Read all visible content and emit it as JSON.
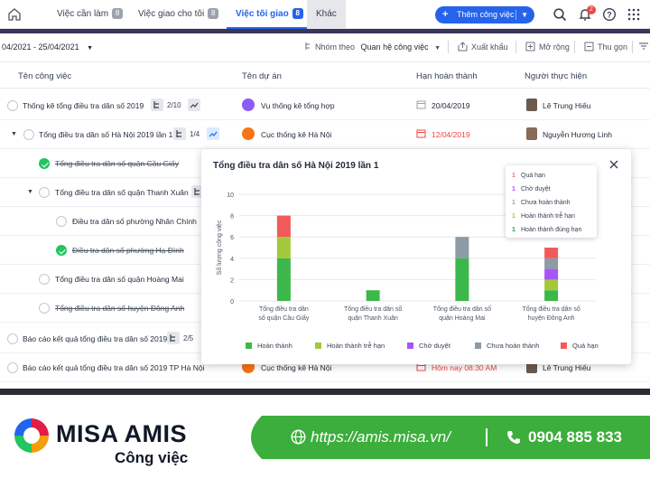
{
  "nav": {
    "tabs": [
      {
        "label": "Việc cần làm",
        "count": "8"
      },
      {
        "label": "Việc giao cho tôi",
        "count": "8"
      },
      {
        "label": "Việc tôi giao",
        "count": "8"
      }
    ],
    "more": "Khác",
    "add_button": "Thêm công việc",
    "notif_count": "2"
  },
  "toolbar": {
    "daterange": "04/2021 - 25/04/2021",
    "group_label": "Nhóm theo",
    "group_value": "Quan hệ công việc",
    "export": "Xuất khẩu",
    "expand": "Mở rộng",
    "collapse": "Thu gọn"
  },
  "table": {
    "headers": [
      "Tên công việc",
      "Tên dự án",
      "Hạn hoàn thành",
      "Người thực hiện"
    ],
    "rows": [
      {
        "name": "Thống kê tổng điều tra dân số 2019",
        "sub": "2/10",
        "project": "Vụ thống kê tổng hợp",
        "due": "20/04/2019",
        "owner": "Lê Trung Hiếu"
      },
      {
        "name": "Tổng điều tra dân số Hà Nội 2019 lần 1",
        "sub": "1/4",
        "project": "Cục thống kê Hà Nội",
        "due": "12/04/2019",
        "owner": "Nguyễn Hương Linh"
      },
      {
        "name": "Tổng điều tra dân số quận Cầu Giấy"
      },
      {
        "name": "Tổng điều tra dân số quận Thanh Xuân"
      },
      {
        "name": "Điều tra dân số phường Nhân Chính"
      },
      {
        "name": "Điều tra dân số phường Hạ Đình"
      },
      {
        "name": "Tổng điều tra dân số quận Hoàng Mai"
      },
      {
        "name": "Tổng điều tra dân số huyện Đông Anh"
      },
      {
        "name": "Báo cáo kết quả tổng điều tra dân số 2019",
        "sub": "2/5"
      },
      {
        "name": "Báo cáo kết quả tổng điều tra dân số 2019 TP Hà Nội",
        "project": "Cục thống kê Hà Nội",
        "due": "Hôm nay 08:30 AM",
        "owner": "Lê Trung Hiếu"
      }
    ]
  },
  "popup": {
    "title": "Tổng điều tra dân số Hà Nội 2019 lần 1",
    "tooltip": [
      {
        "num": "1",
        "label": "Quá hạn",
        "color": "#f87171"
      },
      {
        "num": "1",
        "label": "Chờ duyệt",
        "color": "#a855f7"
      },
      {
        "num": "1",
        "label": "Chưa hoàn thành",
        "color": "#9ca3af"
      },
      {
        "num": "1",
        "label": "Hoàn thành trễ hạn",
        "color": "#a3c93a"
      },
      {
        "num": "1",
        "label": "Hoàn thành đúng hạn",
        "color": "#22a447"
      }
    ]
  },
  "chart_data": {
    "type": "bar",
    "stacked": true,
    "title": "Tổng điều tra dân số Hà Nội 2019 lần 1",
    "ylabel": "Số lượng công việc",
    "ylim": [
      0,
      10
    ],
    "yticks": [
      0,
      2,
      4,
      6,
      8,
      10
    ],
    "grid": true,
    "legend_position": "bottom",
    "categories": [
      [
        "Tổng điều tra dân",
        "số quận Cầu Giấy"
      ],
      [
        "Tổng điều tra dân số",
        "quận Thanh Xuân"
      ],
      [
        "Tổng điều tra dân số",
        "quận Hoàng Mai"
      ],
      [
        "Tổng điều tra dân số",
        "huyện Đông Anh"
      ]
    ],
    "series": [
      {
        "name": "Hoàn thành",
        "color": "#3cb84a",
        "values": [
          4,
          1,
          4,
          1
        ]
      },
      {
        "name": "Hoàn thành trễ hạn",
        "color": "#a3c93a",
        "values": [
          2,
          0,
          0,
          1
        ]
      },
      {
        "name": "Chờ duyệt",
        "color": "#a855f7",
        "values": [
          0,
          0,
          0,
          1
        ]
      },
      {
        "name": "Chưa hoàn thành",
        "color": "#8c9ba5",
        "values": [
          0,
          0,
          2,
          1
        ]
      },
      {
        "name": "Quá hạn",
        "color": "#f25a5a",
        "values": [
          2,
          0,
          0,
          1
        ]
      }
    ]
  },
  "footer": {
    "brand": "MISA AMIS",
    "brand_sub": "Công việc",
    "url": "https://amis.misa.vn/",
    "phone": "0904 885 833"
  }
}
